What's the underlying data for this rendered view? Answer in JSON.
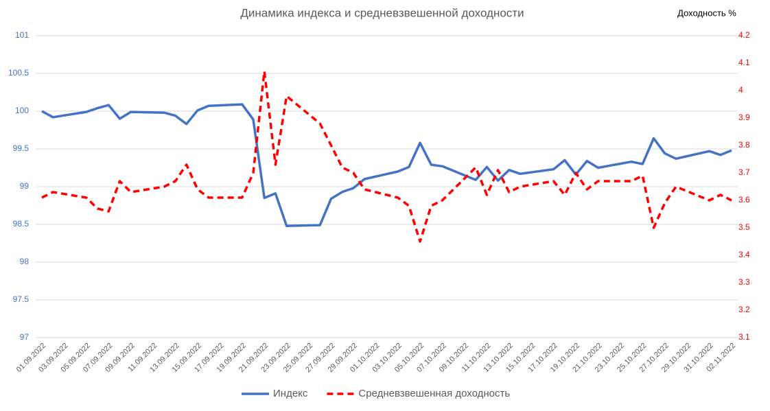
{
  "chart_data": {
    "type": "line",
    "title": "Динамика индекса и средневзвешенной доходности",
    "y2label": "Доходность %",
    "x": [
      "01.09.2022",
      "02.09.2022",
      "05.09.2022",
      "06.09.2022",
      "07.09.2022",
      "08.09.2022",
      "09.09.2022",
      "12.09.2022",
      "13.09.2022",
      "14.09.2022",
      "15.09.2022",
      "16.09.2022",
      "19.09.2022",
      "20.09.2022",
      "21.09.2022",
      "22.09.2022",
      "23.09.2022",
      "26.09.2022",
      "27.09.2022",
      "28.09.2022",
      "29.09.2022",
      "30.09.2022",
      "03.10.2022",
      "04.10.2022",
      "05.10.2022",
      "06.10.2022",
      "07.10.2022",
      "10.10.2022",
      "11.10.2022",
      "12.10.2022",
      "13.10.2022",
      "14.10.2022",
      "17.10.2022",
      "18.10.2022",
      "19.10.2022",
      "20.10.2022",
      "21.10.2022",
      "24.10.2022",
      "25.10.2022",
      "26.10.2022",
      "27.10.2022",
      "28.10.2022",
      "31.10.2022",
      "01.11.2022",
      "02.11.2022"
    ],
    "xlim": [
      "01.09.2022",
      "02.11.2022"
    ],
    "xticks": [
      "01.09.2022",
      "03.09.2022",
      "05.09.2022",
      "07.09.2022",
      "09.09.2022",
      "11.09.2022",
      "13.09.2022",
      "15.09.2022",
      "17.09.2022",
      "19.09.2022",
      "21.09.2022",
      "23.09.2022",
      "25.09.2022",
      "27.09.2022",
      "29.09.2022",
      "01.10.2022",
      "03.10.2022",
      "05.10.2022",
      "07.10.2022",
      "09.10.2022",
      "11.10.2022",
      "13.10.2022",
      "15.10.2022",
      "17.10.2022",
      "19.10.2022",
      "21.10.2022",
      "23.10.2022",
      "25.10.2022",
      "27.10.2022",
      "29.10.2022",
      "31.10.2022",
      "02.11.2022"
    ],
    "ylim": [
      97,
      101
    ],
    "yticks": [
      97,
      97.5,
      98,
      98.5,
      99,
      99.5,
      100,
      100.5,
      101
    ],
    "y2lim": [
      3.1,
      4.2
    ],
    "y2ticks": [
      3.1,
      3.2,
      3.3,
      3.4,
      3.5,
      3.6,
      3.7,
      3.8,
      3.9,
      4,
      4.1,
      4.2
    ],
    "grid": true,
    "legend": "bottom",
    "series": [
      {
        "name": "Индекс",
        "color": "#4472c4",
        "values": [
          100.0,
          99.92,
          99.99,
          100.04,
          100.08,
          99.9,
          99.99,
          99.98,
          99.94,
          99.83,
          100.01,
          100.07,
          100.09,
          99.89,
          98.85,
          98.91,
          98.48,
          98.49,
          98.84,
          98.93,
          98.98,
          99.1,
          99.2,
          99.26,
          99.58,
          99.29,
          99.27,
          99.09,
          99.26,
          99.08,
          99.22,
          99.17,
          99.23,
          99.35,
          99.16,
          99.34,
          99.25,
          99.33,
          99.3,
          99.64,
          99.44,
          99.37,
          99.47,
          99.42,
          99.48
        ]
      },
      {
        "name": "Средневзвешенная доходность",
        "color": "#ff0000",
        "axis": "y2",
        "dashed": true,
        "values": [
          3.61,
          3.63,
          3.61,
          3.57,
          3.56,
          3.67,
          3.63,
          3.65,
          3.67,
          3.73,
          3.64,
          3.61,
          3.61,
          3.7,
          4.07,
          3.73,
          3.98,
          3.88,
          3.8,
          3.72,
          3.7,
          3.64,
          3.61,
          3.58,
          3.45,
          3.58,
          3.6,
          3.72,
          3.62,
          3.71,
          3.63,
          3.65,
          3.67,
          3.62,
          3.7,
          3.64,
          3.67,
          3.67,
          3.69,
          3.5,
          3.59,
          3.65,
          3.6,
          3.62,
          3.6
        ]
      }
    ]
  }
}
